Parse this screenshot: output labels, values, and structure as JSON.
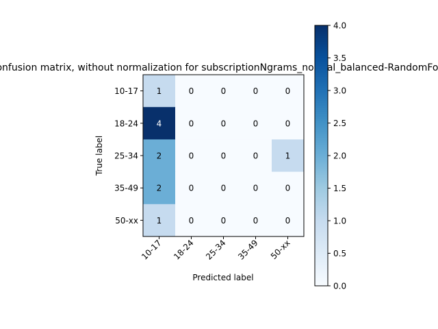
{
  "chart_data": {
    "type": "heatmap",
    "title": "Confusion matrix, without normalization for subscriptionNgrams_normal_balanced-RandomForest",
    "xlabel": "Predicted label",
    "ylabel": "True label",
    "x_categories": [
      "10-17",
      "18-24",
      "25-34",
      "35-49",
      "50-xx"
    ],
    "y_categories": [
      "10-17",
      "18-24",
      "25-34",
      "35-49",
      "50-xx"
    ],
    "values": [
      [
        1,
        0,
        0,
        0,
        0
      ],
      [
        4,
        0,
        0,
        0,
        0
      ],
      [
        2,
        0,
        0,
        0,
        1
      ],
      [
        2,
        0,
        0,
        0,
        0
      ],
      [
        1,
        0,
        0,
        0,
        0
      ]
    ],
    "colorbar": {
      "min": 0.0,
      "max": 4.0,
      "ticks": [
        "0.0",
        "0.5",
        "1.0",
        "1.5",
        "2.0",
        "2.5",
        "3.0",
        "3.5",
        "4.0"
      ],
      "colormap": "Blues"
    }
  }
}
